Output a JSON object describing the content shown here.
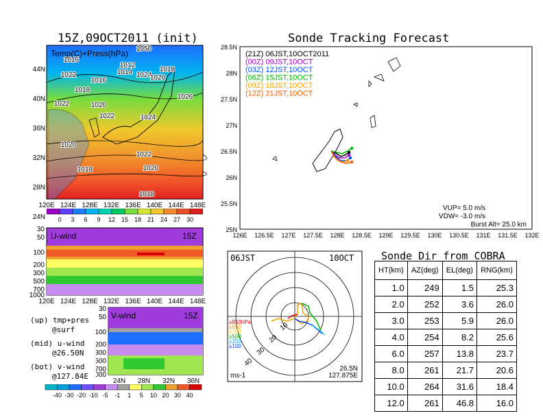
{
  "init_title": "15Z,09OCT2011 (init)",
  "forecast_title": "Sonde Tracking Forecast",
  "map_panel": {
    "label": "Temp(C)+Press(hPa)",
    "lat_ticks": [
      "44N",
      "40N",
      "36N",
      "32N",
      "28N",
      "24N"
    ],
    "lon_ticks": [
      "120E",
      "124E",
      "128E",
      "132E",
      "136E",
      "140E",
      "144E",
      "148E"
    ],
    "isobar_labels": [
      "1050",
      "1016",
      "1012",
      "1014",
      "1022",
      "1024",
      "1018",
      "1016",
      "1020",
      "1018",
      "1026",
      "1022",
      "1020",
      "1022",
      "1024",
      "1020",
      "1022",
      "1018",
      "1020",
      "1018"
    ],
    "colorbar_labels": [
      "0",
      "3",
      "6",
      "9",
      "12",
      "15",
      "18",
      "21",
      "24",
      "27",
      "30"
    ],
    "colorbar_colors": [
      "#9a00c8",
      "#6040ff",
      "#1e7cff",
      "#00b4f0",
      "#00d2b4",
      "#00c864",
      "#78dc3c",
      "#d2e632",
      "#f0c82d",
      "#f08c2d",
      "#f05028",
      "#dc1e1e"
    ]
  },
  "u_panel": {
    "label": "U-wind",
    "time": "15Z",
    "pressure_ticks": [
      "30",
      "50",
      "100",
      "200",
      "300",
      "500",
      "700",
      "1000"
    ],
    "lon_ticks": [
      "120E",
      "124E",
      "128E",
      "132E",
      "136E",
      "140E",
      "144E",
      "148E"
    ]
  },
  "v_panel": {
    "label": "V-wind",
    "time": "15Z",
    "pressure_ticks": [
      "30",
      "50",
      "100",
      "200",
      "300",
      "500",
      "700",
      "1000"
    ],
    "lat_ticks": [
      "24N",
      "28N",
      "32N",
      "36N"
    ]
  },
  "legend_notes": {
    "up_line1": "(up) tmp+pres",
    "up_line2": "@surf",
    "mid_line1": "(mid) u-wind",
    "mid_line2": "@26.50N",
    "bot_line1": "(bot) v-wind",
    "bot_line2": "@127.84E"
  },
  "wind_colorbar": {
    "labels": [
      "-40",
      "-30",
      "-20",
      "-10",
      "-5",
      "-1",
      "1",
      "5",
      "10",
      "20",
      "30",
      "40"
    ],
    "colors": [
      "#00b4c8",
      "#00a0dc",
      "#1e6eff",
      "#6e50ff",
      "#a03cdc",
      "#c88cf0",
      "#a0a0a0",
      "#ffff64",
      "#a0e650",
      "#32c832",
      "#f0a02d",
      "#f05a28",
      "#dc0000"
    ]
  },
  "track_panel": {
    "lat_ticks": [
      "28.5N",
      "28N",
      "27.5N",
      "27N",
      "26.5N",
      "26N",
      "25.5N",
      "25N"
    ],
    "lon_ticks": [
      "126E",
      "126.5E",
      "127E",
      "127.5E",
      "128E",
      "128.5E",
      "129E",
      "129.5E",
      "130E",
      "130.5E",
      "131E",
      "131.5E",
      "132E"
    ],
    "legend": [
      {
        "text": "(21Z)  06JST,10OCT2011",
        "color": "#000000"
      },
      {
        "text": "(00Z)  09JST,10OCT",
        "color": "#a000c8"
      },
      {
        "text": "(03Z)  12JST,10OCT",
        "color": "#0050ff"
      },
      {
        "text": "(06Z)  15JST,10OCT",
        "color": "#00b400"
      },
      {
        "text": "(09Z)  18JST,10OCT",
        "color": "#f0a000"
      },
      {
        "text": "(12Z)  21JST,10OCT",
        "color": "#f06000"
      }
    ],
    "vup": "VUP=  5.0 m/s",
    "vdw": "VDW= -3.0 m/s",
    "burst": "Burst Alt= 25.0 km"
  },
  "hodograph": {
    "time": "06JST",
    "date": "10OCT",
    "ring_labels": [
      "10",
      "20",
      "30",
      "40"
    ],
    "level_legend": [
      {
        "text": "≥850hPa",
        "color": "#e00000"
      },
      {
        "text": "≥850",
        "color": "#f0a000"
      },
      {
        "text": "≥700",
        "color": "#f0d000"
      },
      {
        "text": "≥500",
        "color": "#00b400"
      },
      {
        "text": "≥250",
        "color": "#00b4f0"
      },
      {
        "text": "≥100",
        "color": "#0040ff"
      }
    ],
    "unit": "ms-1",
    "lat": "26.5N",
    "lon": "127.875E"
  },
  "sonde_dir": {
    "title": "Sonde Dir from COBRA",
    "headers": [
      "HT(km)",
      "AZ(deg)",
      "EL(deg)",
      "RNG(km)"
    ],
    "rows": [
      [
        "1.0",
        "249",
        "1.5",
        "25.3"
      ],
      [
        "2.0",
        "252",
        "3.6",
        "26.0"
      ],
      [
        "3.0",
        "253",
        "5.9",
        "26.0"
      ],
      [
        "4.0",
        "254",
        "8.2",
        "25.6"
      ],
      [
        "6.0",
        "257",
        "13.8",
        "23.7"
      ],
      [
        "8.0",
        "261",
        "21.7",
        "20.6"
      ],
      [
        "10.0",
        "264",
        "31.6",
        "18.4"
      ],
      [
        "12.0",
        "261",
        "46.8",
        "16.0"
      ]
    ]
  },
  "chart_data": {
    "type": "table",
    "title": "Sonde Dir from COBRA",
    "columns": [
      "HT(km)",
      "AZ(deg)",
      "EL(deg)",
      "RNG(km)"
    ],
    "rows": [
      [
        1.0,
        249,
        1.5,
        25.3
      ],
      [
        2.0,
        252,
        3.6,
        26.0
      ],
      [
        3.0,
        253,
        5.9,
        26.0
      ],
      [
        4.0,
        254,
        8.2,
        25.6
      ],
      [
        6.0,
        257,
        13.8,
        23.7
      ],
      [
        8.0,
        261,
        21.7,
        20.6
      ],
      [
        10.0,
        264,
        31.6,
        18.4
      ],
      [
        12.0,
        261,
        46.8,
        16.0
      ]
    ],
    "track_xlim": [
      126,
      132
    ],
    "track_ylim": [
      25,
      28.5
    ],
    "launch_point": [
      127.875,
      26.5
    ]
  }
}
